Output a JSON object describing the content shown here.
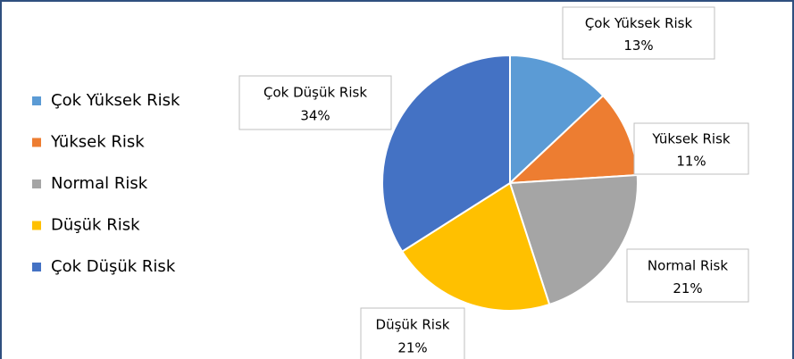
{
  "chart_data": {
    "type": "pie",
    "categories": [
      "Çok Yüksek Risk",
      "Yüksek Risk",
      "Normal Risk",
      "Düşük Risk",
      "Çok Düşük Risk"
    ],
    "values": [
      13,
      11,
      21,
      21,
      34
    ],
    "value_labels": [
      "13%",
      "11%",
      "21%",
      "21%",
      "34%"
    ],
    "colors": [
      "#5b9bd5",
      "#ed7d31",
      "#a5a5a5",
      "#ffc000",
      "#4472c4"
    ],
    "legend": "left"
  }
}
